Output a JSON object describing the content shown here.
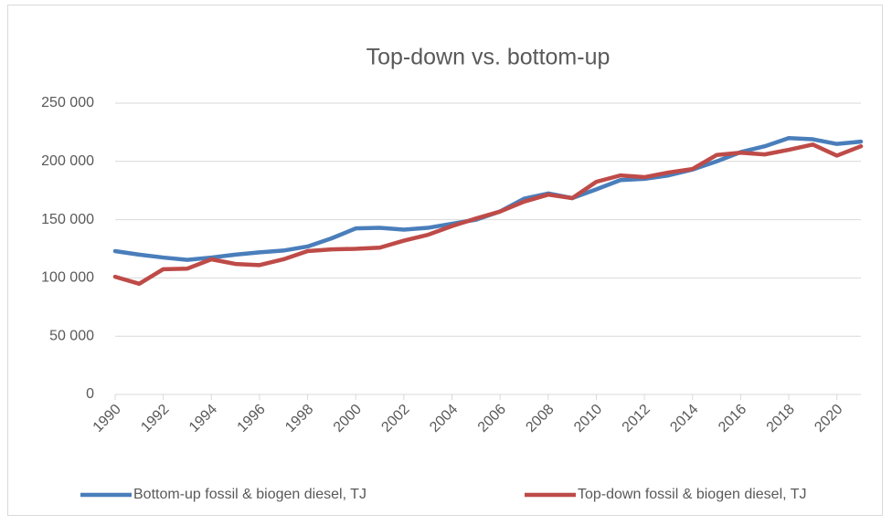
{
  "chart_data": {
    "type": "line",
    "title": "Top-down vs. bottom-up",
    "x": [
      1990,
      1991,
      1992,
      1993,
      1994,
      1995,
      1996,
      1997,
      1998,
      1999,
      2000,
      2001,
      2002,
      2003,
      2004,
      2005,
      2006,
      2007,
      2008,
      2009,
      2010,
      2011,
      2012,
      2013,
      2014,
      2015,
      2016,
      2017,
      2018,
      2019,
      2020,
      2021
    ],
    "xlim": [
      1990,
      2021
    ],
    "xticks": [
      1990,
      1992,
      1994,
      1996,
      1998,
      2000,
      2002,
      2004,
      2006,
      2008,
      2010,
      2012,
      2014,
      2016,
      2018,
      2020
    ],
    "ylim": [
      0,
      250000
    ],
    "yticks": [
      0,
      {
        "value": 50000,
        "label": "50 000"
      },
      {
        "value": 100000,
        "label": "100 000"
      },
      {
        "value": 150000,
        "label": "150 000"
      },
      {
        "value": 200000,
        "label": "200 000"
      },
      {
        "value": 250000,
        "label": "250 000"
      }
    ],
    "grid": true,
    "legend": "bottom",
    "series": [
      {
        "name": "Bottom-up fossil & biogen diesel, TJ",
        "color": "#4a7ebb",
        "values": [
          123000,
          120000,
          117500,
          115500,
          117500,
          120000,
          122000,
          123500,
          127000,
          134000,
          142500,
          143000,
          141500,
          143000,
          146500,
          150000,
          157000,
          168000,
          172500,
          168500,
          176000,
          184000,
          185000,
          188000,
          193000,
          200000,
          208000,
          213000,
          220000,
          219000,
          215000,
          217000
        ]
      },
      {
        "name": "Top-down fossil & biogen diesel, TJ",
        "color": "#be4b48",
        "values": [
          101000,
          95000,
          107500,
          108000,
          116000,
          112000,
          111000,
          116000,
          123000,
          124500,
          125000,
          126000,
          132000,
          137000,
          144500,
          151000,
          157000,
          165500,
          171500,
          168500,
          182500,
          188000,
          186500,
          190500,
          193500,
          205500,
          207500,
          206000,
          210000,
          214500,
          205000,
          213000
        ]
      }
    ]
  }
}
